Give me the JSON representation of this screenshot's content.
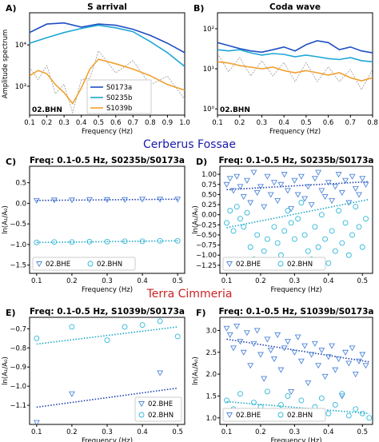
{
  "sections": {
    "cerberus": {
      "title": "Cerberus Fossae",
      "color": "#1a1aa8"
    },
    "terra": {
      "title": "Terra Cimmeria",
      "color": "#cc2222"
    }
  },
  "chart_data": [
    {
      "panel": "A)",
      "type": "line",
      "title": "S arrival",
      "xlabel": "Frequency (Hz)",
      "ylabel": "Amplitude spectrum",
      "log_y": true,
      "xlim": [
        0.1,
        1.0
      ],
      "ylim": [
        200,
        60000
      ],
      "xticks": [
        0.1,
        0.2,
        0.3,
        0.4,
        0.5,
        0.6,
        0.7,
        0.8,
        0.9,
        1.0
      ],
      "xtick_labels": [
        "0.1",
        "0.2",
        "0.3",
        "0.4",
        "0.5",
        "0.6",
        "0.7",
        "0.8",
        "0.9",
        "1.0"
      ],
      "yticks": [
        1000,
        10000
      ],
      "ytick_labels": [
        "10³",
        "10⁴"
      ],
      "station": "02.BHN",
      "legend": "lower-center",
      "series": [
        {
          "name": "S0173a",
          "color": "#1f4fc2",
          "x": [
            0.1,
            0.2,
            0.3,
            0.4,
            0.5,
            0.6,
            0.7,
            0.8,
            0.9,
            1.0
          ],
          "y": [
            20000,
            32000,
            34000,
            27000,
            32000,
            30000,
            24000,
            17000,
            11000,
            6500
          ]
        },
        {
          "name": "S0235b",
          "color": "#1ea7d6",
          "x": [
            0.1,
            0.2,
            0.3,
            0.4,
            0.5,
            0.6,
            0.7,
            0.8,
            0.9,
            1.0
          ],
          "y": [
            11000,
            15000,
            20000,
            25000,
            30000,
            26000,
            21000,
            12000,
            6500,
            3000
          ]
        },
        {
          "name": "S1039b",
          "color": "#f0a030",
          "x": [
            0.1,
            0.15,
            0.2,
            0.25,
            0.3,
            0.35,
            0.4,
            0.45,
            0.5,
            0.6,
            0.7,
            0.8,
            0.9,
            1.0
          ],
          "y": [
            1800,
            2400,
            2000,
            1100,
            700,
            380,
            900,
            2600,
            4500,
            3500,
            2600,
            1800,
            1100,
            800
          ]
        }
      ],
      "noise_color": "#888888"
    },
    {
      "panel": "B)",
      "type": "line",
      "title": "Coda wave",
      "xlabel": "Frequency (Hz)",
      "log_y": true,
      "xlim": [
        0.1,
        0.8
      ],
      "ylim": [
        0.7,
        250
      ],
      "xticks": [
        0.1,
        0.2,
        0.3,
        0.4,
        0.5,
        0.6,
        0.7,
        0.8
      ],
      "xtick_labels": [
        "0.1",
        "0.2",
        "0.3",
        "0.4",
        "0.5",
        "0.6",
        "0.7",
        "0.8"
      ],
      "yticks": [
        1,
        10,
        100
      ],
      "ytick_labels": [
        "10⁰",
        "10¹",
        "10²"
      ],
      "station": "02.BHN",
      "series": [
        {
          "name": "S0173a",
          "color": "#1f4fc2",
          "x": [
            0.1,
            0.15,
            0.2,
            0.25,
            0.3,
            0.35,
            0.4,
            0.45,
            0.5,
            0.55,
            0.6,
            0.65,
            0.7,
            0.75,
            0.8
          ],
          "y": [
            45,
            38,
            32,
            28,
            26,
            30,
            35,
            28,
            40,
            50,
            45,
            30,
            35,
            28,
            25
          ]
        },
        {
          "name": "S0235b",
          "color": "#1ea7d6",
          "x": [
            0.1,
            0.15,
            0.2,
            0.25,
            0.3,
            0.35,
            0.4,
            0.45,
            0.5,
            0.55,
            0.6,
            0.65,
            0.7,
            0.75,
            0.8
          ],
          "y": [
            30,
            28,
            30,
            25,
            22,
            24,
            23,
            20,
            22,
            20,
            18,
            17,
            19,
            16,
            15
          ]
        },
        {
          "name": "S1039b",
          "color": "#f0a030",
          "x": [
            0.1,
            0.15,
            0.2,
            0.25,
            0.3,
            0.35,
            0.4,
            0.45,
            0.5,
            0.55,
            0.6,
            0.65,
            0.7,
            0.75,
            0.8
          ],
          "y": [
            15,
            14,
            12,
            11,
            10,
            11,
            9,
            8,
            9,
            8,
            7,
            8,
            6,
            5,
            6
          ]
        }
      ],
      "noise_color": "#888888"
    },
    {
      "panel": "C)",
      "type": "scatter",
      "title": "Freq: 0.1-0.5 Hz, S0235b/S0173a",
      "xlabel": "Frequency (Hz)",
      "ylabel": "ln(A₁/A₀)",
      "xlim": [
        0.08,
        0.52
      ],
      "ylim": [
        -1.7,
        0.9
      ],
      "xticks": [
        0.1,
        0.2,
        0.3,
        0.4,
        0.5
      ],
      "xtick_labels": [
        "0.1",
        "0.2",
        "0.3",
        "0.4",
        "0.5"
      ],
      "yticks": [
        -1.5,
        -1.0,
        -0.5,
        0.0,
        0.5
      ],
      "ytick_labels": [
        "−1.5",
        "−1.0",
        "−0.5",
        "0.0",
        "0.5"
      ],
      "legend": "lower-left",
      "series": [
        {
          "name": "02.BHE",
          "marker": "triangle",
          "color": "#4f86d8",
          "x": [
            0.1,
            0.15,
            0.2,
            0.25,
            0.3,
            0.35,
            0.4,
            0.45,
            0.5
          ],
          "y": [
            0.07,
            0.08,
            0.08,
            0.09,
            0.09,
            0.09,
            0.1,
            0.1,
            0.1
          ],
          "fit": {
            "x": [
              0.1,
              0.5
            ],
            "y": [
              0.07,
              0.1
            ],
            "color": "#1f3fb0"
          }
        },
        {
          "name": "02.BHN",
          "marker": "circle",
          "color": "#2fb8d8",
          "x": [
            0.1,
            0.15,
            0.2,
            0.25,
            0.3,
            0.35,
            0.4,
            0.45,
            0.5
          ],
          "y": [
            -0.95,
            -0.94,
            -0.94,
            -0.93,
            -0.93,
            -0.92,
            -0.92,
            -0.91,
            -0.91
          ],
          "fit": {
            "x": [
              0.1,
              0.5
            ],
            "y": [
              -0.95,
              -0.91
            ],
            "color": "#1aa8c8"
          }
        }
      ]
    },
    {
      "panel": "D)",
      "type": "scatter",
      "title": "Freq: 0.1-0.5 Hz, S0235b/S0173a",
      "xlabel": "Frequency (Hz)",
      "ylabel": "ln(A₁/A₀)",
      "xlim": [
        0.08,
        0.53
      ],
      "ylim": [
        -1.45,
        1.2
      ],
      "xticks": [
        0.1,
        0.2,
        0.3,
        0.4,
        0.5
      ],
      "xtick_labels": [
        "0.1",
        "0.2",
        "0.3",
        "0.4",
        "0.5"
      ],
      "yticks": [
        -1.25,
        -1.0,
        -0.75,
        -0.5,
        -0.25,
        0.0,
        0.25,
        0.5,
        0.75,
        1.0
      ],
      "ytick_labels": [
        "−1.25",
        "−1.00",
        "−0.75",
        "−0.50",
        "−0.25",
        "0.00",
        "0.25",
        "0.50",
        "0.75",
        "1.00"
      ],
      "legend": "lower-left",
      "series": [
        {
          "name": "02.BHE",
          "marker": "triangle",
          "color": "#4f86d8",
          "x": [
            0.1,
            0.11,
            0.12,
            0.13,
            0.14,
            0.15,
            0.16,
            0.17,
            0.18,
            0.19,
            0.2,
            0.21,
            0.22,
            0.23,
            0.24,
            0.25,
            0.26,
            0.27,
            0.28,
            0.29,
            0.3,
            0.31,
            0.32,
            0.33,
            0.34,
            0.35,
            0.36,
            0.37,
            0.38,
            0.39,
            0.4,
            0.41,
            0.42,
            0.43,
            0.44,
            0.45,
            0.46,
            0.47,
            0.48,
            0.49,
            0.5,
            0.51
          ],
          "y": [
            0.75,
            0.9,
            0.6,
            0.95,
            0.7,
            0.45,
            0.85,
            0.3,
            1.05,
            0.55,
            0.7,
            0.2,
            0.95,
            0.5,
            0.8,
            0.35,
            0.75,
            1.0,
            0.6,
            0.15,
            0.85,
            0.5,
            0.95,
            0.4,
            0.7,
            0.25,
            0.9,
            1.05,
            0.6,
            0.45,
            0.8,
            0.35,
            0.7,
            1.0,
            0.55,
            0.85,
            0.3,
            0.95,
            0.65,
            0.5,
            0.9,
            0.75
          ],
          "fit": {
            "x": [
              0.1,
              0.52
            ],
            "y": [
              0.62,
              0.82
            ],
            "color": "#1f3fb0"
          }
        },
        {
          "name": "02.BHN",
          "marker": "circle",
          "color": "#2fb8d8",
          "x": [
            0.1,
            0.11,
            0.12,
            0.13,
            0.14,
            0.15,
            0.16,
            0.17,
            0.18,
            0.19,
            0.2,
            0.21,
            0.22,
            0.23,
            0.24,
            0.25,
            0.26,
            0.27,
            0.28,
            0.29,
            0.3,
            0.31,
            0.32,
            0.33,
            0.34,
            0.35,
            0.36,
            0.37,
            0.38,
            0.39,
            0.4,
            0.41,
            0.42,
            0.43,
            0.44,
            0.45,
            0.46,
            0.47,
            0.48,
            0.49,
            0.5,
            0.51
          ],
          "y": [
            -0.2,
            0.1,
            -0.4,
            0.2,
            -0.1,
            -0.3,
            0.05,
            -0.8,
            -1.1,
            -0.5,
            -1.3,
            -0.9,
            -0.6,
            -1.2,
            -0.3,
            -0.7,
            -1.0,
            -0.4,
            0.1,
            -0.2,
            -0.6,
            -0.1,
            0.3,
            -0.5,
            -0.9,
            -1.1,
            -0.3,
            -0.8,
            0.0,
            -0.6,
            -1.2,
            -0.4,
            -0.9,
            0.1,
            -0.7,
            -0.2,
            -1.0,
            -0.5,
            0.2,
            -0.3,
            -0.8,
            -0.1
          ],
          "fit": {
            "x": [
              0.1,
              0.52
            ],
            "y": [
              -0.32,
              0.38
            ],
            "color": "#1aa8c8"
          }
        }
      ]
    },
    {
      "panel": "E)",
      "type": "scatter",
      "title": "Freq: 0.1-0.5 Hz, S1039b/S0173a",
      "xlabel": "Frequency (Hz)",
      "ylabel": "ln(A₁/A₀)",
      "xlim": [
        0.08,
        0.52
      ],
      "ylim": [
        -1.2,
        -0.64
      ],
      "xticks": [
        0.1,
        0.2,
        0.3,
        0.4,
        0.5
      ],
      "xtick_labels": [
        "0.1",
        "0.2",
        "0.3",
        "0.4",
        "0.5"
      ],
      "yticks": [
        -1.1,
        -1.0,
        -0.9,
        -0.8,
        -0.7
      ],
      "ytick_labels": [
        "−1.1",
        "−1.0",
        "−0.9",
        "−0.8",
        "−0.7"
      ],
      "legend": "lower-right",
      "series": [
        {
          "name": "02.BHE",
          "marker": "triangle",
          "color": "#4f86d8",
          "x": [
            0.1,
            0.2,
            0.45
          ],
          "y": [
            -1.19,
            -1.04,
            -0.93
          ],
          "fit": {
            "x": [
              0.1,
              0.5
            ],
            "y": [
              -1.11,
              -1.01
            ],
            "color": "#1f3fb0"
          }
        },
        {
          "name": "02.BHN",
          "marker": "circle",
          "color": "#2fb8d8",
          "x": [
            0.1,
            0.2,
            0.3,
            0.35,
            0.4,
            0.45,
            0.5
          ],
          "y": [
            -0.75,
            -0.69,
            -0.76,
            -0.69,
            -0.68,
            -0.66,
            -0.74
          ],
          "fit": {
            "x": [
              0.1,
              0.5
            ],
            "y": [
              -0.78,
              -0.69
            ],
            "color": "#1aa8c8"
          }
        }
      ]
    },
    {
      "panel": "F)",
      "type": "scatter",
      "title": "Freq: 0.1-0.5 Hz, S1039b/S0173a",
      "xlabel": "Frequency (Hz)",
      "ylabel": "ln(A₁/A₀)",
      "xlim": [
        0.08,
        0.53
      ],
      "ylim": [
        0.85,
        3.3
      ],
      "xticks": [
        0.1,
        0.2,
        0.3,
        0.4,
        0.5
      ],
      "xtick_labels": [
        "0.1",
        "0.2",
        "0.3",
        "0.4",
        "0.5"
      ],
      "yticks": [
        1.0,
        1.5,
        2.0,
        2.5,
        3.0
      ],
      "ytick_labels": [
        "1.0",
        "1.5",
        "2.0",
        "2.5",
        "3.0"
      ],
      "legend": "lower-left",
      "series": [
        {
          "name": "02.BHE",
          "marker": "triangle",
          "color": "#4f86d8",
          "x": [
            0.1,
            0.11,
            0.12,
            0.13,
            0.14,
            0.15,
            0.16,
            0.17,
            0.18,
            0.19,
            0.2,
            0.21,
            0.22,
            0.23,
            0.24,
            0.25,
            0.26,
            0.27,
            0.28,
            0.29,
            0.3,
            0.31,
            0.32,
            0.33,
            0.34,
            0.35,
            0.36,
            0.37,
            0.38,
            0.39,
            0.4,
            0.41,
            0.42,
            0.43,
            0.44,
            0.45,
            0.46,
            0.47,
            0.48,
            0.49,
            0.5,
            0.51
          ],
          "y": [
            3.05,
            2.9,
            2.6,
            3.1,
            2.75,
            2.5,
            2.95,
            2.2,
            2.7,
            3.0,
            2.45,
            1.9,
            2.8,
            2.55,
            2.35,
            2.9,
            2.1,
            2.6,
            2.75,
            1.6,
            2.5,
            2.85,
            2.3,
            2.65,
            1.8,
            2.45,
            2.7,
            2.2,
            2.55,
            1.95,
            2.4,
            2.65,
            2.1,
            2.35,
            1.5,
            2.5,
            2.25,
            2.6,
            2.0,
            2.3,
            2.45,
            2.2
          ],
          "fit": {
            "x": [
              0.1,
              0.52
            ],
            "y": [
              2.8,
              2.28
            ],
            "color": "#1f3fb0"
          }
        },
        {
          "name": "02.BHN",
          "marker": "circle",
          "color": "#2fb8d8",
          "x": [
            0.1,
            0.12,
            0.14,
            0.16,
            0.18,
            0.2,
            0.22,
            0.24,
            0.26,
            0.28,
            0.3,
            0.32,
            0.34,
            0.36,
            0.38,
            0.4,
            0.42,
            0.44,
            0.46,
            0.48,
            0.5,
            0.52
          ],
          "y": [
            1.4,
            1.2,
            1.55,
            1.1,
            1.35,
            1.25,
            1.6,
            1.05,
            1.3,
            1.5,
            1.15,
            1.4,
            1.0,
            1.25,
            1.45,
            1.1,
            1.3,
            1.55,
            1.05,
            1.2,
            1.1,
            1.0
          ],
          "fit": {
            "x": [
              0.1,
              0.52
            ],
            "y": [
              1.37,
              1.1
            ],
            "color": "#1aa8c8"
          }
        }
      ]
    }
  ]
}
